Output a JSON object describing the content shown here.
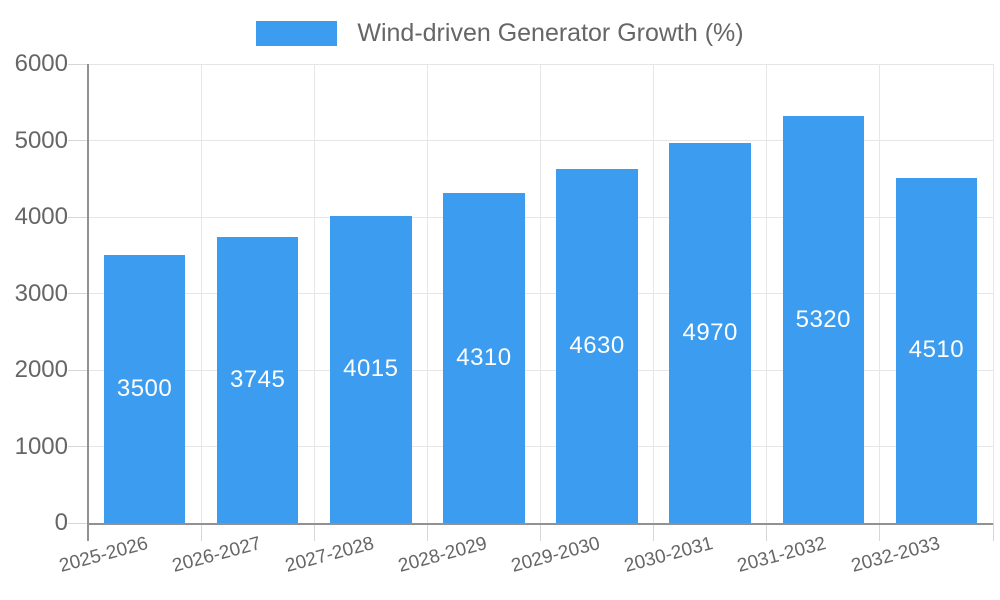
{
  "legend": {
    "label": "Wind-driven Generator Growth (%)",
    "swatch_color": "#3B9CF0"
  },
  "chart_data": {
    "type": "bar",
    "title": "Wind-driven Generator Growth (%)",
    "categories": [
      "2025-2026",
      "2026-2027",
      "2027-2028",
      "2028-2029",
      "2029-2030",
      "2030-2031",
      "2031-2032",
      "2032-2033"
    ],
    "values": [
      3500,
      3745,
      4015,
      4310,
      4630,
      4970,
      5320,
      4510
    ],
    "xlabel": "",
    "ylabel": "",
    "ylim": [
      0,
      6000
    ],
    "yticks": [
      0,
      1000,
      2000,
      3000,
      4000,
      5000,
      6000
    ],
    "grid": true,
    "legend_position": "top",
    "bar_color": "#3B9CF0",
    "bar_label_color": "#FFFFFF",
    "grid_color": "#E6E6E6",
    "tick_color": "#D6D6D6",
    "axis_color": "#919191",
    "text_color": "#666666"
  }
}
